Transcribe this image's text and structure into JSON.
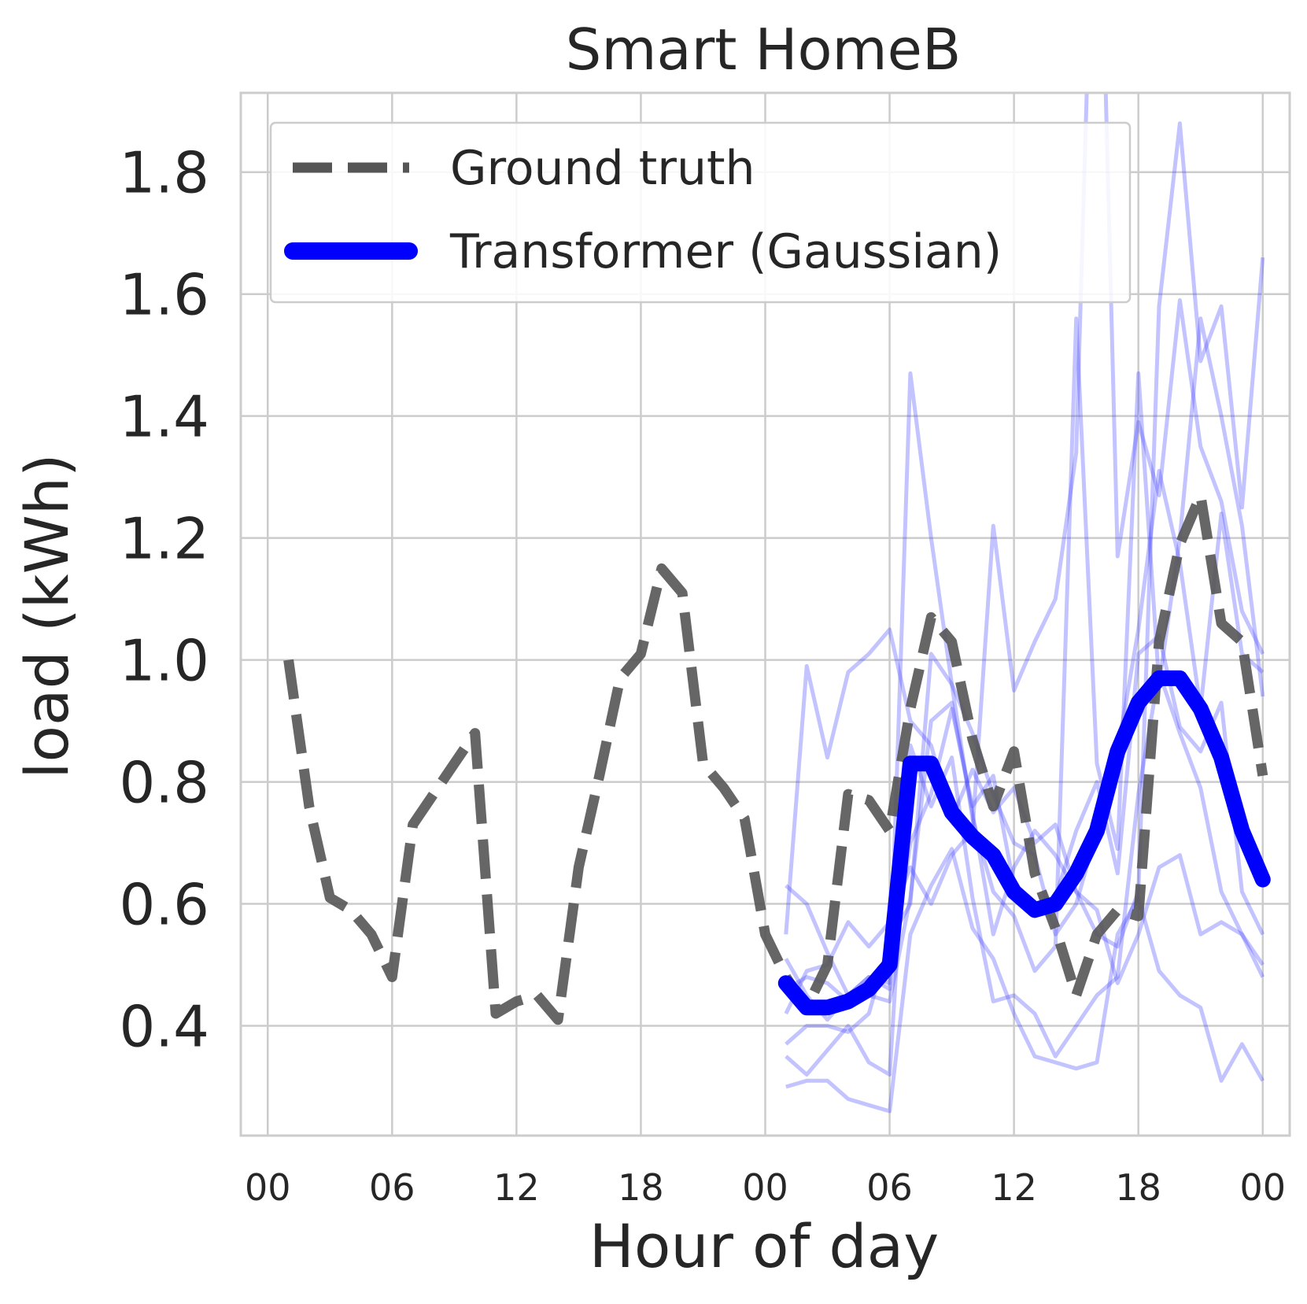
{
  "chart_data": {
    "type": "line",
    "title": "Smart HomeB",
    "xlabel": "Hour of day",
    "ylabel": "load (kWh)",
    "x_tick_labels": [
      "00",
      "06",
      "12",
      "18",
      "00",
      "06",
      "12",
      "18",
      "00"
    ],
    "x_tick_hours": [
      0,
      6,
      12,
      18,
      24,
      30,
      36,
      42,
      48
    ],
    "xlim": [
      -1.3,
      49.3
    ],
    "y_ticks": [
      0.4,
      0.6,
      0.8,
      1.0,
      1.2,
      1.4,
      1.6,
      1.8
    ],
    "y_tick_labels": [
      "0.4",
      "0.6",
      "0.8",
      "1.0",
      "1.2",
      "1.4",
      "1.6",
      "1.8"
    ],
    "ylim": [
      0.22,
      1.93
    ],
    "grid": true,
    "legend_position": "top-left",
    "series": [
      {
        "name": "Ground truth",
        "style": "dashed",
        "color": "#555555",
        "x": [
          1,
          2,
          3,
          4,
          5,
          6,
          7,
          8,
          9,
          10,
          11,
          12,
          13,
          14,
          15,
          16,
          17,
          18,
          19,
          20,
          21,
          22,
          23,
          24,
          25,
          26,
          27,
          28,
          29,
          30,
          31,
          32,
          33,
          34,
          35,
          36,
          37,
          38,
          39,
          40,
          41,
          42,
          43,
          44,
          45,
          46,
          47,
          48
        ],
        "values": [
          1.0,
          0.76,
          0.61,
          0.59,
          0.55,
          0.48,
          0.73,
          0.78,
          0.83,
          0.88,
          0.42,
          0.44,
          0.45,
          0.41,
          0.66,
          0.81,
          0.97,
          1.01,
          1.15,
          1.11,
          0.83,
          0.79,
          0.74,
          0.55,
          0.48,
          0.43,
          0.5,
          0.78,
          0.77,
          0.72,
          0.92,
          1.07,
          1.03,
          0.87,
          0.76,
          0.85,
          0.65,
          0.56,
          0.45,
          0.55,
          0.59,
          0.58,
          1.03,
          1.19,
          1.27,
          1.06,
          1.03,
          0.81
        ]
      },
      {
        "name": "Transformer (Gaussian)",
        "style": "solid",
        "color": "#0000ff",
        "x": [
          25,
          26,
          27,
          28,
          29,
          30,
          31,
          32,
          33,
          34,
          35,
          36,
          37,
          38,
          39,
          40,
          41,
          42,
          43,
          44,
          45,
          46,
          47,
          48
        ],
        "values": [
          0.47,
          0.43,
          0.43,
          0.44,
          0.46,
          0.5,
          0.83,
          0.83,
          0.75,
          0.71,
          0.68,
          0.62,
          0.59,
          0.6,
          0.65,
          0.72,
          0.85,
          0.93,
          0.97,
          0.97,
          0.92,
          0.84,
          0.72,
          0.64
        ]
      }
    ],
    "samples": {
      "color": "#4444ff",
      "x": [
        25,
        26,
        27,
        28,
        29,
        30,
        31,
        32,
        33,
        34,
        35,
        36,
        37,
        38,
        39,
        40,
        41,
        42,
        43,
        44,
        45,
        46,
        47,
        48
      ],
      "values": [
        [
          0.63,
          0.6,
          0.52,
          0.45,
          0.48,
          0.46,
          1.47,
          1.2,
          0.96,
          0.88,
          0.78,
          0.7,
          0.68,
          0.55,
          0.6,
          0.72,
          0.85,
          1.05,
          1.31,
          1.16,
          0.92,
          1.24,
          1.01,
          0.98
        ],
        [
          0.55,
          0.99,
          0.84,
          0.98,
          1.01,
          1.05,
          0.9,
          0.86,
          0.74,
          0.82,
          0.75,
          0.79,
          0.7,
          0.73,
          0.62,
          0.55,
          0.53,
          0.62,
          1.58,
          1.88,
          1.49,
          1.58,
          1.25,
          1.66
        ],
        [
          0.42,
          0.49,
          0.5,
          0.57,
          0.53,
          0.57,
          0.66,
          0.6,
          0.68,
          0.72,
          1.22,
          0.95,
          1.03,
          1.1,
          1.34,
          2.5,
          1.17,
          1.39,
          1.27,
          1.59,
          1.35,
          1.26,
          1.08,
          1.01
        ],
        [
          0.37,
          0.4,
          0.4,
          0.39,
          0.42,
          0.54,
          0.6,
          1.01,
          0.96,
          0.74,
          0.62,
          0.58,
          0.49,
          0.53,
          1.56,
          0.83,
          0.69,
          1.47,
          0.96,
          1.2,
          1.56,
          1.4,
          1.22,
          0.94
        ],
        [
          0.3,
          0.31,
          0.31,
          0.28,
          0.27,
          0.26,
          0.55,
          0.63,
          0.69,
          0.56,
          0.51,
          0.42,
          0.35,
          0.34,
          0.33,
          0.34,
          0.55,
          0.61,
          0.49,
          0.45,
          0.43,
          0.31,
          0.37,
          0.31
        ],
        [
          0.35,
          0.32,
          0.36,
          0.4,
          0.34,
          0.32,
          0.86,
          0.76,
          0.84,
          0.61,
          0.44,
          0.45,
          0.42,
          0.35,
          0.4,
          0.45,
          0.48,
          0.78,
          0.98,
          0.88,
          0.79,
          0.62,
          0.55,
          0.5
        ],
        [
          0.51,
          0.45,
          0.41,
          0.45,
          0.48,
          0.47,
          0.7,
          0.78,
          0.92,
          0.76,
          0.81,
          0.63,
          0.58,
          0.61,
          0.72,
          0.8,
          0.65,
          1.01,
          1.04,
          0.89,
          0.85,
          0.93,
          0.62,
          0.55
        ],
        [
          0.46,
          0.48,
          0.47,
          0.44,
          0.45,
          0.44,
          0.61,
          0.9,
          0.93,
          0.75,
          0.55,
          0.66,
          0.72,
          0.68,
          0.62,
          0.59,
          0.47,
          0.55,
          0.66,
          0.68,
          0.55,
          0.57,
          0.55,
          0.48
        ]
      ]
    }
  }
}
